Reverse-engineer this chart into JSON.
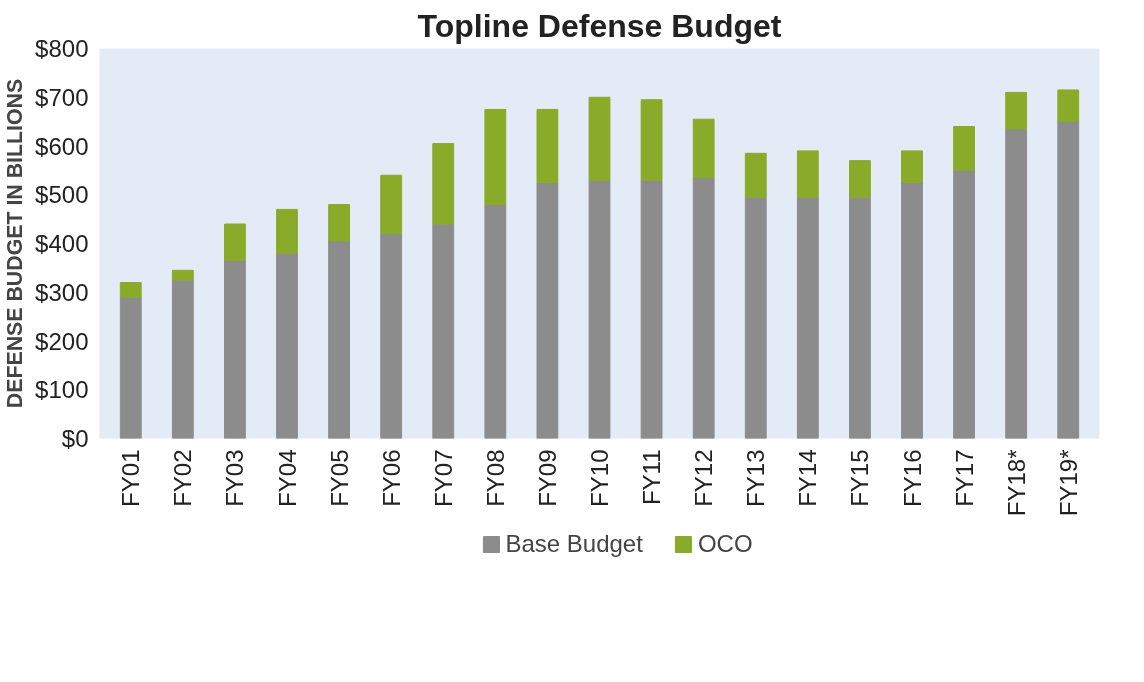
{
  "chart_data": {
    "type": "bar",
    "title": "Topline Defense Budget",
    "ylabel": "DEFENSE BUDGET IN BILLIONS",
    "categories": [
      "FY01",
      "FY02",
      "FY03",
      "FY04",
      "FY05",
      "FY06",
      "FY07",
      "FY08",
      "FY09",
      "FY10",
      "FY11",
      "FY12",
      "FY13",
      "FY14",
      "FY15",
      "FY16",
      "FY17",
      "FY18*",
      "FY19*"
    ],
    "stacked": true,
    "series": [
      {
        "name": "Base Budget",
        "color": "#8c8c8c",
        "values": [
          290,
          325,
          365,
          380,
          405,
          420,
          440,
          480,
          525,
          530,
          530,
          535,
          495,
          495,
          495,
          525,
          550,
          635,
          650
        ]
      },
      {
        "name": "OCO",
        "color": "#8aaa2a",
        "values": [
          30,
          20,
          75,
          90,
          75,
          120,
          165,
          195,
          150,
          170,
          165,
          120,
          90,
          95,
          75,
          65,
          90,
          75,
          65
        ]
      }
    ],
    "ylim": [
      0,
      800
    ],
    "yticks": [
      {
        "value": 0,
        "label": "$0"
      },
      {
        "value": 100,
        "label": "$100"
      },
      {
        "value": 200,
        "label": "$200"
      },
      {
        "value": 300,
        "label": "$300"
      },
      {
        "value": 400,
        "label": "$400"
      },
      {
        "value": 500,
        "label": "$500"
      },
      {
        "value": 600,
        "label": "$600"
      },
      {
        "value": 700,
        "label": "$700"
      },
      {
        "value": 800,
        "label": "$800"
      }
    ],
    "grid": false,
    "legend": "bottom"
  }
}
